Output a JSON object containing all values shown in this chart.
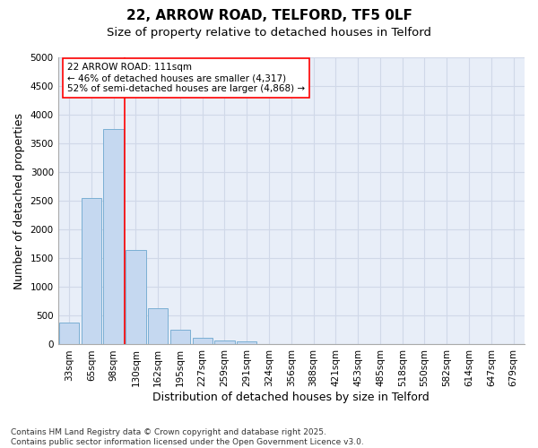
{
  "title1": "22, ARROW ROAD, TELFORD, TF5 0LF",
  "title2": "Size of property relative to detached houses in Telford",
  "xlabel": "Distribution of detached houses by size in Telford",
  "ylabel": "Number of detached properties",
  "categories": [
    "33sqm",
    "65sqm",
    "98sqm",
    "130sqm",
    "162sqm",
    "195sqm",
    "227sqm",
    "259sqm",
    "291sqm",
    "324sqm",
    "356sqm",
    "388sqm",
    "421sqm",
    "453sqm",
    "485sqm",
    "518sqm",
    "550sqm",
    "582sqm",
    "614sqm",
    "647sqm",
    "679sqm"
  ],
  "values": [
    375,
    2550,
    3750,
    1650,
    625,
    250,
    120,
    70,
    50,
    0,
    0,
    0,
    0,
    0,
    0,
    0,
    0,
    0,
    0,
    0,
    0
  ],
  "bar_color": "#c5d8f0",
  "bar_edge_color": "#7bafd4",
  "vline_x": 2.5,
  "vline_color": "red",
  "annotation_text": "22 ARROW ROAD: 111sqm\n← 46% of detached houses are smaller (4,317)\n52% of semi-detached houses are larger (4,868) →",
  "annotation_box_color": "white",
  "annotation_box_edgecolor": "red",
  "ylim": [
    0,
    5000
  ],
  "yticks": [
    0,
    500,
    1000,
    1500,
    2000,
    2500,
    3000,
    3500,
    4000,
    4500,
    5000
  ],
  "grid_color": "#d0d8e8",
  "bg_color": "#e8eef8",
  "fig_bg_color": "#ffffff",
  "footnote": "Contains HM Land Registry data © Crown copyright and database right 2025.\nContains public sector information licensed under the Open Government Licence v3.0.",
  "title_fontsize": 11,
  "subtitle_fontsize": 9.5,
  "tick_fontsize": 7.5,
  "label_fontsize": 9,
  "footnote_fontsize": 6.5
}
